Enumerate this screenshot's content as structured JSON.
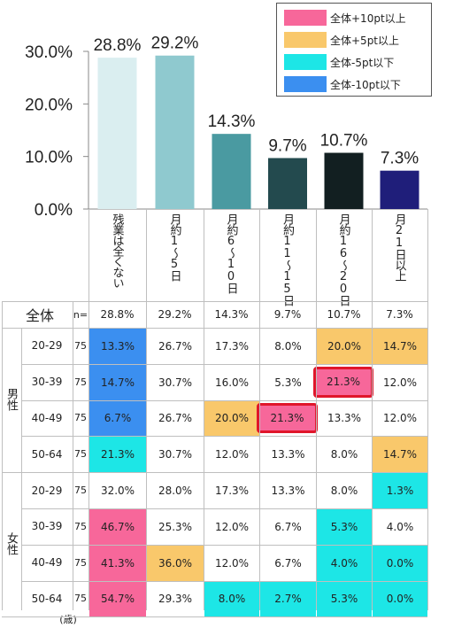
{
  "chart_data": {
    "type": "bar",
    "categories": [
      "残業は全くない",
      "月約1〜5日",
      "月約6〜10日",
      "月約11〜15日",
      "月約16〜20日",
      "月21日以上"
    ],
    "values": [
      28.8,
      29.2,
      14.3,
      9.7,
      10.7,
      7.3
    ],
    "value_labels": [
      "28.8%",
      "29.2%",
      "14.3%",
      "9.7%",
      "10.7%",
      "7.3%"
    ],
    "bar_colors": [
      "#daeef0",
      "#8fc9cf",
      "#4a9aa1",
      "#234a4e",
      "#121f21",
      "#1f1e7a"
    ],
    "yticks": [
      "0.0%",
      "10.0%",
      "20.0%",
      "30.0%"
    ],
    "ylim": [
      0,
      30
    ]
  },
  "legend": [
    {
      "label": "全体+10pt以上",
      "color": "#f7679a"
    },
    {
      "label": "全体+5pt以上",
      "color": "#f9c86b"
    },
    {
      "label": "全体-5pt以下",
      "color": "#1de6e6"
    },
    {
      "label": "全体-10pt以下",
      "color": "#3b8ff0"
    }
  ],
  "table": {
    "total_label": "全体",
    "n_prefix": "n=",
    "total_values": [
      "28.8%",
      "29.2%",
      "14.3%",
      "9.7%",
      "10.7%",
      "7.3%"
    ],
    "groups": [
      {
        "label": "男性",
        "rows": [
          {
            "age": "20-29",
            "n": "75",
            "values": [
              "13.3%",
              "26.7%",
              "17.3%",
              "8.0%",
              "20.0%",
              "14.7%"
            ]
          },
          {
            "age": "30-39",
            "n": "75",
            "values": [
              "14.7%",
              "30.7%",
              "16.0%",
              "5.3%",
              "21.3%",
              "12.0%"
            ]
          },
          {
            "age": "40-49",
            "n": "75",
            "values": [
              "6.7%",
              "26.7%",
              "20.0%",
              "21.3%",
              "13.3%",
              "12.0%"
            ]
          },
          {
            "age": "50-64",
            "n": "75",
            "values": [
              "21.3%",
              "30.7%",
              "12.0%",
              "13.3%",
              "8.0%",
              "14.7%"
            ]
          }
        ]
      },
      {
        "label": "女性",
        "rows": [
          {
            "age": "20-29",
            "n": "75",
            "values": [
              "32.0%",
              "28.0%",
              "17.3%",
              "13.3%",
              "8.0%",
              "1.3%"
            ]
          },
          {
            "age": "30-39",
            "n": "75",
            "values": [
              "46.7%",
              "25.3%",
              "12.0%",
              "6.7%",
              "5.3%",
              "4.0%"
            ]
          },
          {
            "age": "40-49",
            "n": "75",
            "values": [
              "41.3%",
              "36.0%",
              "12.0%",
              "6.7%",
              "4.0%",
              "0.0%"
            ]
          },
          {
            "age": "50-64",
            "n": "75",
            "values": [
              "54.7%",
              "29.3%",
              "8.0%",
              "2.7%",
              "5.3%",
              "0.0%"
            ]
          }
        ]
      }
    ],
    "unit_note": "(歳)"
  },
  "cell_colors": {
    "0-0": "#3b8ff0",
    "0-4": "#f9c86b",
    "0-5": "#f9c86b",
    "1-0": "#3b8ff0",
    "1-4": "#f7679a",
    "2-0": "#3b8ff0",
    "2-2": "#f9c86b",
    "2-3": "#f7679a",
    "3-0": "#1de6e6",
    "3-5": "#f9c86b",
    "4-5": "#1de6e6",
    "5-0": "#f7679a",
    "5-4": "#1de6e6",
    "6-0": "#f7679a",
    "6-1": "#f9c86b",
    "6-4": "#1de6e6",
    "6-5": "#1de6e6",
    "7-0": "#f7679a",
    "7-2": "#1de6e6",
    "7-3": "#1de6e6",
    "7-4": "#1de6e6",
    "7-5": "#1de6e6"
  },
  "highlighted_cells": [
    "1-4",
    "2-3"
  ]
}
